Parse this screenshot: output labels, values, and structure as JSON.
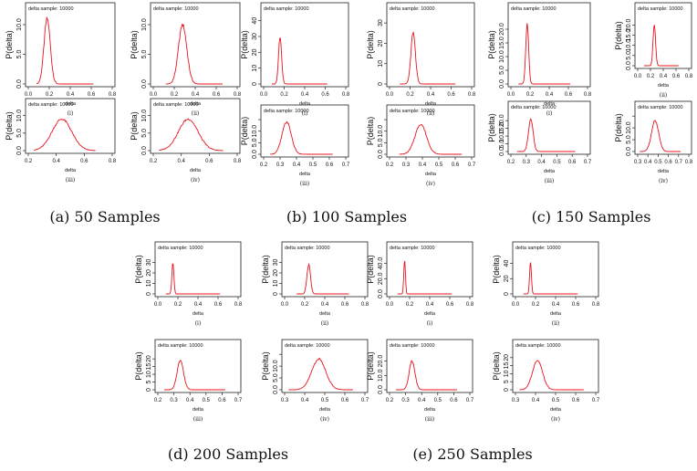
{
  "figure": {
    "captions": [
      "(a) 50 Samples",
      "(b) 100 Samples",
      "(c) 150 Samples",
      "(d) 200 Samples",
      "(e) 250 Samples"
    ]
  },
  "chart_data": [
    {
      "type": "line",
      "group": "a",
      "roman": "(i)",
      "legend": "delta sample: 10000",
      "xlabel": "delta",
      "ylabel": "P(delta)",
      "xlim": [
        0.0,
        0.8
      ],
      "xticks": [
        0.0,
        0.2,
        0.4,
        0.6,
        0.8
      ],
      "ylim": [
        0,
        12
      ],
      "yticks": [
        0,
        5,
        10
      ],
      "ytick_labels": [
        "0.0",
        "5.0",
        "10.0"
      ],
      "series": [
        {
          "mu": 0.18,
          "sigma": 0.03,
          "xmin": 0.08,
          "xmax": 0.62,
          "peak": 11
        }
      ]
    },
    {
      "type": "line",
      "group": "a",
      "roman": "(ii)",
      "legend": "delta sample: 10000",
      "xlabel": "delta",
      "ylabel": "P(delta)",
      "xlim": [
        0.0,
        0.8
      ],
      "xticks": [
        0.0,
        0.2,
        0.4,
        0.6,
        0.8
      ],
      "ylim": [
        0,
        12
      ],
      "yticks": [
        0,
        5,
        10
      ],
      "ytick_labels": [
        "0.0",
        "5.0",
        "10.0"
      ],
      "series": [
        {
          "mu": 0.28,
          "sigma": 0.04,
          "xmin": 0.12,
          "xmax": 0.66,
          "peak": 10
        }
      ]
    },
    {
      "type": "line",
      "group": "a",
      "roman": "(iii)",
      "legend": "delta sample: 10000",
      "xlabel": "delta",
      "ylabel": "P(delta)",
      "xlim": [
        0.2,
        0.8
      ],
      "xticks": [
        0.2,
        0.4,
        0.6,
        0.8
      ],
      "ylim": [
        0,
        12
      ],
      "yticks": [
        0,
        5,
        10
      ],
      "ytick_labels": [
        "0.0",
        "5.0",
        "10.0"
      ],
      "series": [
        {
          "mu": 0.44,
          "sigma": 0.07,
          "xmin": 0.24,
          "xmax": 0.68,
          "peak": 9
        }
      ]
    },
    {
      "type": "line",
      "group": "a",
      "roman": "(iv)",
      "legend": "delta sample: 10000",
      "xlabel": "delta",
      "ylabel": "P(delta)",
      "xlim": [
        0.2,
        0.8
      ],
      "xticks": [
        0.2,
        0.4,
        0.6,
        0.8
      ],
      "ylim": [
        0,
        12
      ],
      "yticks": [
        0,
        5,
        10
      ],
      "ytick_labels": [
        "0.0",
        "5.0",
        "10.0"
      ],
      "series": [
        {
          "mu": 0.45,
          "sigma": 0.07,
          "xmin": 0.24,
          "xmax": 0.7,
          "peak": 9
        }
      ]
    },
    {
      "type": "line",
      "group": "b",
      "roman": "(i)",
      "legend": "delta sample: 10000",
      "xlabel": "delta",
      "ylabel": "P(delta)",
      "xlim": [
        0.0,
        0.8
      ],
      "xticks": [
        0.0,
        0.2,
        0.4,
        0.6,
        0.8
      ],
      "ylim": [
        0,
        45
      ],
      "yticks": [
        0,
        10,
        20,
        30,
        40
      ],
      "ytick_labels": [
        "0",
        "10",
        "20",
        "30",
        "40"
      ],
      "series": [
        {
          "mu": 0.16,
          "sigma": 0.015,
          "xmin": 0.08,
          "xmax": 0.62,
          "peak": 30
        }
      ]
    },
    {
      "type": "line",
      "group": "b",
      "roman": "(ii)",
      "legend": "delta sample: 10000",
      "xlabel": "delta",
      "ylabel": "P(delta)",
      "xlim": [
        0.0,
        0.8
      ],
      "xticks": [
        0.0,
        0.2,
        0.4,
        0.6,
        0.8
      ],
      "ylim": [
        0,
        35
      ],
      "yticks": [
        0,
        10,
        20,
        30
      ],
      "ytick_labels": [
        "0",
        "10",
        "20",
        "30"
      ],
      "series": [
        {
          "mu": 0.23,
          "sigma": 0.022,
          "xmin": 0.1,
          "xmax": 0.64,
          "peak": 25
        }
      ]
    },
    {
      "type": "line",
      "group": "b",
      "roman": "(iii)",
      "legend": "delta sample: 10000",
      "xlabel": "delta",
      "ylabel": "P(delta)",
      "xlim": [
        0.2,
        0.7
      ],
      "xticks": [
        0.2,
        0.3,
        0.4,
        0.5,
        0.6,
        0.7
      ],
      "ylim": [
        0,
        17
      ],
      "yticks": [
        0,
        5,
        10,
        15
      ],
      "ytick_labels": [
        "0.0",
        "5.0",
        "10.0",
        ""
      ],
      "series": [
        {
          "mu": 0.34,
          "sigma": 0.028,
          "xmin": 0.24,
          "xmax": 0.62,
          "peak": 14
        }
      ]
    },
    {
      "type": "line",
      "group": "b",
      "roman": "(iv)",
      "legend": "delta sample: 10000",
      "xlabel": "delta",
      "ylabel": "P(delta)",
      "xlim": [
        0.2,
        0.7
      ],
      "xticks": [
        0.2,
        0.3,
        0.4,
        0.5,
        0.6,
        0.7
      ],
      "ylim": [
        0,
        17
      ],
      "yticks": [
        0,
        5,
        10,
        15
      ],
      "ytick_labels": [
        "0.0",
        "5.0",
        "10.0",
        ""
      ],
      "series": [
        {
          "mu": 0.39,
          "sigma": 0.035,
          "xmin": 0.26,
          "xmax": 0.64,
          "peak": 13
        }
      ]
    },
    {
      "type": "line",
      "group": "c",
      "roman": "(i)",
      "legend": "delta sample: 10000",
      "xlabel": "delta",
      "ylabel": "P(delta)",
      "xlim": [
        0.0,
        0.8
      ],
      "xticks": [
        0.0,
        0.2,
        0.4,
        0.6,
        0.8
      ],
      "ylim": [
        0,
        26
      ],
      "yticks": [
        0,
        5,
        10,
        15,
        20
      ],
      "ytick_labels": [
        "0.0",
        "5.0",
        "10.0",
        "15.0",
        "20.0"
      ],
      "series": [
        {
          "mu": 0.17,
          "sigma": 0.015,
          "xmin": 0.08,
          "xmax": 0.62,
          "peak": 22
        }
      ]
    },
    {
      "type": "line",
      "group": "c",
      "roman": "(ii)",
      "legend": "delta sample: 10000",
      "xlabel": "delta",
      "ylabel": "P(delta)",
      "xlim": [
        0.0,
        0.8
      ],
      "xticks": [
        0.0,
        0.2,
        0.4,
        0.6,
        0.8
      ],
      "ylim": [
        0,
        26
      ],
      "yticks": [
        0,
        5,
        10,
        15,
        20
      ],
      "ytick_labels": [
        "0.0",
        "5.0",
        "10.0",
        "15.0",
        "20.0"
      ],
      "series": [
        {
          "mu": 0.26,
          "sigma": 0.02,
          "xmin": 0.1,
          "xmax": 0.64,
          "peak": 20
        }
      ]
    },
    {
      "type": "line",
      "group": "c",
      "roman": "(iii)",
      "legend": "delta sample: 10000",
      "xlabel": "delta",
      "ylabel": "P(delta)",
      "xlim": [
        0.2,
        0.7
      ],
      "xticks": [
        0.2,
        0.3,
        0.4,
        0.5,
        0.6,
        0.7
      ],
      "ylim": [
        0,
        26
      ],
      "yticks": [
        0,
        5,
        10,
        15,
        20
      ],
      "ytick_labels": [
        "0.0",
        "5.0",
        "10.0",
        "15.0",
        "20.0"
      ],
      "series": [
        {
          "mu": 0.33,
          "sigma": 0.015,
          "xmin": 0.24,
          "xmax": 0.62,
          "peak": 21
        }
      ]
    },
    {
      "type": "line",
      "group": "c",
      "roman": "(iv)",
      "legend": "delta sample: 10000",
      "xlabel": "delta",
      "ylabel": "P(delta)",
      "xlim": [
        0.3,
        0.8
      ],
      "xticks": [
        0.3,
        0.4,
        0.5,
        0.6,
        0.7,
        0.8
      ],
      "ylim": [
        0,
        17
      ],
      "yticks": [
        0,
        5,
        10,
        15
      ],
      "ytick_labels": [
        "0.0",
        "5.0",
        "10.0",
        ""
      ],
      "series": [
        {
          "mu": 0.47,
          "sigma": 0.035,
          "xmin": 0.32,
          "xmax": 0.72,
          "peak": 13
        }
      ]
    },
    {
      "type": "line",
      "group": "d",
      "roman": "(i)",
      "legend": "delta sample: 10000",
      "xlabel": "delta",
      "ylabel": "P(delta)",
      "xlim": [
        0.0,
        0.8
      ],
      "xticks": [
        0.0,
        0.2,
        0.4,
        0.6,
        0.8
      ],
      "ylim": [
        0,
        40
      ],
      "yticks": [
        0,
        10,
        20,
        30
      ],
      "ytick_labels": [
        "0",
        "10",
        "20",
        "30"
      ],
      "series": [
        {
          "mu": 0.15,
          "sigma": 0.01,
          "xmin": 0.08,
          "xmax": 0.62,
          "peak": 30
        }
      ]
    },
    {
      "type": "line",
      "group": "d",
      "roman": "(ii)",
      "legend": "delta sample: 10000",
      "xlabel": "delta",
      "ylabel": "P(delta)",
      "xlim": [
        0.0,
        0.8
      ],
      "xticks": [
        0.0,
        0.2,
        0.4,
        0.6,
        0.8
      ],
      "ylim": [
        0,
        40
      ],
      "yticks": [
        0,
        10,
        20,
        30
      ],
      "ytick_labels": [
        "0",
        "10",
        "20",
        "30"
      ],
      "series": [
        {
          "mu": 0.24,
          "sigma": 0.018,
          "xmin": 0.12,
          "xmax": 0.64,
          "peak": 28
        }
      ]
    },
    {
      "type": "line",
      "group": "d",
      "roman": "(iii)",
      "legend": "delta sample: 10000",
      "xlabel": "delta",
      "ylabel": "P(delta)",
      "xlim": [
        0.2,
        0.7
      ],
      "xticks": [
        0.2,
        0.3,
        0.4,
        0.5,
        0.6,
        0.7
      ],
      "ylim": [
        0,
        26
      ],
      "yticks": [
        0,
        5,
        10,
        15,
        20
      ],
      "ytick_labels": [
        "0",
        "5",
        "10",
        "15",
        "20"
      ],
      "series": [
        {
          "mu": 0.34,
          "sigma": 0.02,
          "xmin": 0.24,
          "xmax": 0.62,
          "peak": 19
        }
      ]
    },
    {
      "type": "line",
      "group": "d",
      "roman": "(iv)",
      "legend": "delta sample: 10000",
      "xlabel": "delta",
      "ylabel": "P(delta)",
      "xlim": [
        0.3,
        0.7
      ],
      "xticks": [
        0.3,
        0.4,
        0.5,
        0.6,
        0.7
      ],
      "ylim": [
        0,
        17
      ],
      "yticks": [
        0,
        5,
        10,
        15
      ],
      "ytick_labels": [
        "0.0",
        "5.0",
        "10.0",
        ""
      ],
      "series": [
        {
          "mu": 0.47,
          "sigma": 0.035,
          "xmin": 0.32,
          "xmax": 0.64,
          "peak": 13
        }
      ]
    },
    {
      "type": "line",
      "group": "e",
      "roman": "(i)",
      "legend": "delta sample: 10000",
      "xlabel": "delta",
      "ylabel": "P(delta)",
      "xlim": [
        0.0,
        0.8
      ],
      "xticks": [
        0.0,
        0.2,
        0.4,
        0.6,
        0.8
      ],
      "ylim": [
        0,
        55
      ],
      "yticks": [
        0,
        20,
        40
      ],
      "ytick_labels": [
        "0.0",
        "20.0",
        "40.0"
      ],
      "series": [
        {
          "mu": 0.15,
          "sigma": 0.008,
          "xmin": 0.08,
          "xmax": 0.62,
          "peak": 45
        }
      ]
    },
    {
      "type": "line",
      "group": "e",
      "roman": "(ii)",
      "legend": "delta sample: 10000",
      "xlabel": "delta",
      "ylabel": "P(delta)",
      "xlim": [
        0.0,
        0.8
      ],
      "xticks": [
        0.0,
        0.2,
        0.4,
        0.6,
        0.8
      ],
      "ylim": [
        0,
        55
      ],
      "yticks": [
        0,
        20,
        40
      ],
      "ytick_labels": [
        "0",
        "20",
        "40"
      ],
      "series": [
        {
          "mu": 0.15,
          "sigma": 0.009,
          "xmin": 0.08,
          "xmax": 0.62,
          "peak": 42
        }
      ]
    },
    {
      "type": "line",
      "group": "e",
      "roman": "(iii)",
      "legend": "delta sample: 10000",
      "xlabel": "delta",
      "ylabel": "P(delta)",
      "xlim": [
        0.2,
        0.7
      ],
      "xticks": [
        0.2,
        0.3,
        0.4,
        0.5,
        0.6,
        0.7
      ],
      "ylim": [
        0,
        28
      ],
      "yticks": [
        0,
        10,
        20
      ],
      "ytick_labels": [
        "0.0",
        "10.0",
        "20.0"
      ],
      "series": [
        {
          "mu": 0.34,
          "sigma": 0.018,
          "xmin": 0.24,
          "xmax": 0.62,
          "peak": 20
        }
      ]
    },
    {
      "type": "line",
      "group": "e",
      "roman": "(iv)",
      "legend": "delta sample: 10000",
      "xlabel": "delta",
      "ylabel": "P(delta)",
      "xlim": [
        0.3,
        0.7
      ],
      "xticks": [
        0.3,
        0.4,
        0.5,
        0.6,
        0.7
      ],
      "ylim": [
        0,
        25
      ],
      "yticks": [
        0,
        5,
        10,
        15,
        20
      ],
      "ytick_labels": [
        "0",
        "5",
        "10",
        "15",
        "20"
      ],
      "series": [
        {
          "mu": 0.41,
          "sigma": 0.025,
          "xmin": 0.32,
          "xmax": 0.64,
          "peak": 18
        }
      ]
    }
  ],
  "style": {
    "line_color": "#e8141c",
    "axis_color": "#222222"
  }
}
